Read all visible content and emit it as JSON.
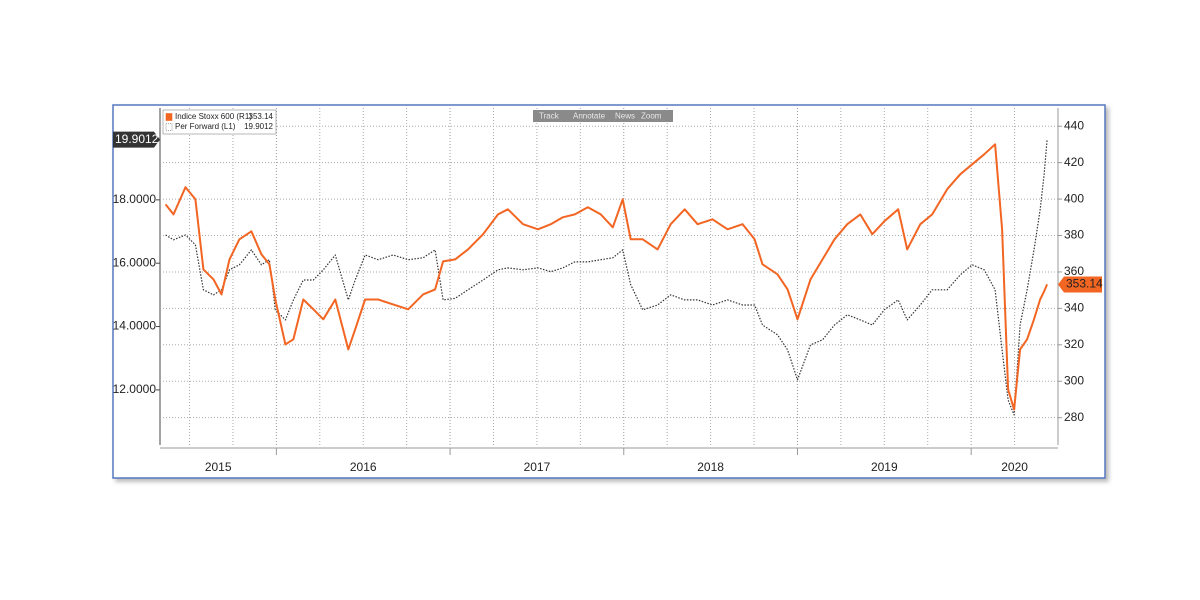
{
  "chart_data": {
    "type": "line",
    "toolbar": [
      "Track",
      "Annotate",
      "News",
      "Zoom"
    ],
    "x": [
      2015.362,
      2015.408,
      2015.477,
      2015.534,
      2015.58,
      2015.638,
      2015.684,
      2015.73,
      2015.787,
      2015.856,
      2015.914,
      2015.96,
      2015.994,
      2016.052,
      2016.098,
      2016.155,
      2016.213,
      2016.27,
      2016.339,
      2016.414,
      2016.454,
      2016.511,
      2016.586,
      2016.672,
      2016.759,
      2016.845,
      2016.914,
      2016.96,
      2017.029,
      2017.103,
      2017.19,
      2017.276,
      2017.333,
      2017.42,
      2017.506,
      2017.58,
      2017.649,
      2017.718,
      2017.793,
      2017.868,
      2017.937,
      2017.994,
      2018.04,
      2018.109,
      2018.195,
      2018.27,
      2018.351,
      2018.425,
      2018.511,
      2018.598,
      2018.684,
      2018.753,
      2018.799,
      2018.885,
      2018.943,
      2019.0,
      2019.075,
      2019.144,
      2019.213,
      2019.287,
      2019.362,
      2019.431,
      2019.5,
      2019.58,
      2019.632,
      2019.707,
      2019.776,
      2019.862,
      2019.937,
      2020.006,
      2020.075,
      2020.138,
      2020.178,
      2020.213,
      2020.247,
      2020.282,
      2020.322,
      2020.362,
      2020.397,
      2020.42,
      2020.437
    ],
    "series": [
      {
        "name": "Indice Stoxx 600 (R1)",
        "color": "#f26522",
        "axis": "y2",
        "dash": false,
        "values": [
          397.1,
          391.6,
          406.5,
          399.9,
          361.4,
          355.9,
          347.7,
          366.9,
          377.9,
          382.3,
          369.7,
          364.2,
          344.9,
          320.2,
          323.0,
          344.9,
          339.5,
          334.0,
          344.9,
          317.5,
          328.5,
          344.9,
          344.9,
          342.2,
          339.5,
          347.7,
          350.4,
          365.8,
          366.9,
          372.4,
          380.7,
          391.6,
          394.4,
          386.2,
          383.4,
          386.2,
          390.0,
          391.6,
          395.5,
          391.6,
          384.5,
          399.9,
          377.9,
          377.9,
          372.4,
          386.2,
          394.4,
          386.2,
          388.9,
          383.4,
          386.2,
          377.9,
          364.2,
          358.7,
          350.4,
          334.0,
          355.9,
          366.9,
          377.9,
          386.2,
          391.6,
          380.7,
          387.8,
          394.4,
          372.4,
          386.2,
          391.6,
          405.4,
          413.6,
          419.1,
          424.6,
          430.1,
          383.4,
          295.5,
          284.5,
          317.5,
          323.0,
          334.0,
          344.9,
          349.3,
          353.14
        ]
      },
      {
        "name": "Per Forward (L1)",
        "color": "#333333",
        "axis": "y",
        "dash": true,
        "values": [
          16.89,
          16.74,
          16.89,
          16.58,
          15.16,
          15.0,
          15.16,
          15.79,
          15.95,
          16.42,
          15.95,
          16.11,
          14.53,
          14.21,
          14.84,
          15.47,
          15.47,
          15.79,
          16.26,
          14.84,
          15.47,
          16.26,
          16.11,
          16.26,
          16.11,
          16.17,
          16.42,
          14.84,
          14.89,
          15.16,
          15.47,
          15.79,
          15.85,
          15.79,
          15.85,
          15.73,
          15.85,
          16.04,
          16.04,
          16.11,
          16.17,
          16.42,
          15.32,
          14.53,
          14.68,
          15.0,
          14.84,
          14.84,
          14.68,
          14.84,
          14.68,
          14.68,
          14.05,
          13.74,
          13.26,
          12.32,
          13.42,
          13.58,
          14.05,
          14.37,
          14.21,
          14.05,
          14.53,
          14.84,
          14.21,
          14.68,
          15.16,
          15.16,
          15.63,
          15.95,
          15.79,
          15.16,
          13.26,
          11.68,
          11.21,
          14.05,
          15.16,
          16.42,
          17.68,
          18.79,
          19.9012
        ]
      }
    ],
    "xlim": [
      2015.33,
      2020.5
    ],
    "xticks": [
      {
        "value": 2015,
        "label": "2015"
      },
      {
        "value": 2016,
        "label": "2016"
      },
      {
        "value": 2017,
        "label": "2017"
      },
      {
        "value": 2018,
        "label": "2018"
      },
      {
        "value": 2019,
        "label": "2019"
      },
      {
        "value": 2020,
        "label": "2020"
      }
    ],
    "x_minor_ticks": [
      2015.5,
      2015.75,
      2016.25,
      2016.5,
      2016.75,
      2017.25,
      2017.5,
      2017.75,
      2018.25,
      2018.5,
      2018.75,
      2019.25,
      2019.5,
      2019.75,
      2020.25
    ],
    "ylim": [
      10.26,
      20.9
    ],
    "yticks": [
      {
        "value": 12,
        "label": "12.0000"
      },
      {
        "value": 14,
        "label": "14.0000"
      },
      {
        "value": 16,
        "label": "16.0000"
      },
      {
        "value": 18,
        "label": "18.0000"
      }
    ],
    "y2lim": [
      265,
      450
    ],
    "y2ticks": [
      280,
      300,
      320,
      340,
      360,
      380,
      400,
      420,
      440
    ],
    "grid": true
  }
}
